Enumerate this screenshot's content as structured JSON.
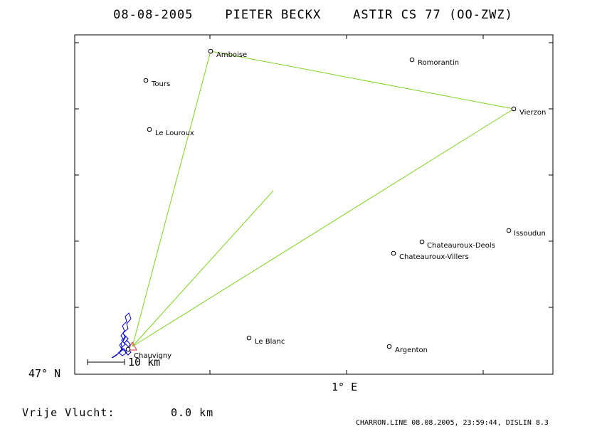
{
  "title": "08-08-2005    PIETER BECKX    ASTIR CS 77 (OO-ZWZ)",
  "axis": {
    "y_label": "47° N",
    "x_label": "1° E"
  },
  "towns": [
    {
      "name": "Amboise"
    },
    {
      "name": "Romorantin"
    },
    {
      "name": "Tours"
    },
    {
      "name": "Vierzon"
    },
    {
      "name": "Le Louroux"
    },
    {
      "name": "Issoudun"
    },
    {
      "name": "Chateauroux-Deols"
    },
    {
      "name": "Chateauroux-Villers"
    },
    {
      "name": "Le Blanc"
    },
    {
      "name": "Argenton"
    },
    {
      "name": "Chauvigny"
    }
  ],
  "scale_bar": {
    "label": "10 km"
  },
  "free_flight": {
    "label": "Vrije Vlucht:",
    "value": "0.0 km"
  },
  "credits": "CHARRON.LINE 08.08.2005, 23:59:44, DISLIN 8.3",
  "colors": {
    "task_line": "#7dd321",
    "track": "#0000cc",
    "start_marker": "#e03030"
  }
}
